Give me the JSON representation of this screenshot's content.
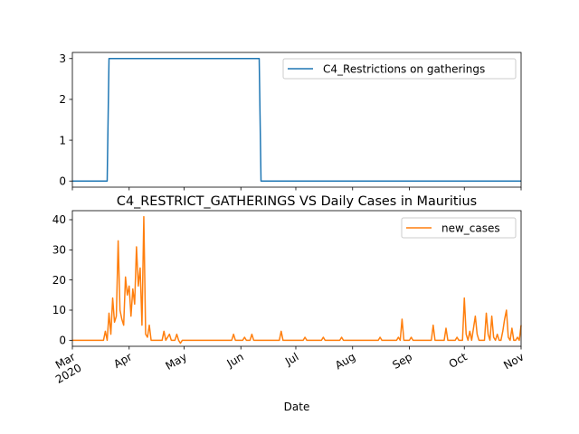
{
  "colors": {
    "series1": "#1f77b4",
    "series2": "#ff7f0e",
    "axis": "#000000",
    "legend_border": "#cccccc"
  },
  "chart_data": [
    {
      "type": "line",
      "title": "",
      "xlabel": "",
      "ylabel": "",
      "ylim": [
        -0.15,
        3.15
      ],
      "yticks": [
        0,
        1,
        2,
        3
      ],
      "legend": "top-right",
      "grid": false,
      "series": [
        {
          "name": "C4_Restrictions on gatherings",
          "color": "#1f77b4",
          "points": [
            [
              "2020-03-01",
              0
            ],
            [
              "2020-03-20",
              0
            ],
            [
              "2020-03-21",
              3
            ],
            [
              "2020-06-11",
              3
            ],
            [
              "2020-06-12",
              0
            ],
            [
              "2020-11-01",
              0
            ]
          ]
        }
      ]
    },
    {
      "type": "line",
      "title": "C4_RESTRICT_GATHERINGS VS Daily Cases in Mauritius",
      "xlabel": "Date",
      "ylabel": "",
      "ylim": [
        -2,
        43
      ],
      "yticks": [
        0,
        10,
        20,
        30,
        40
      ],
      "xlim": [
        "2020-03-01",
        "2020-11-01"
      ],
      "xticks": [
        {
          "date": "2020-03-01",
          "label": "Mar",
          "sub": "2020"
        },
        {
          "date": "2020-04-01",
          "label": "Apr",
          "sub": ""
        },
        {
          "date": "2020-05-01",
          "label": "May",
          "sub": ""
        },
        {
          "date": "2020-06-01",
          "label": "Jun",
          "sub": ""
        },
        {
          "date": "2020-07-01",
          "label": "Jul",
          "sub": ""
        },
        {
          "date": "2020-08-01",
          "label": "Aug",
          "sub": ""
        },
        {
          "date": "2020-09-01",
          "label": "Sep",
          "sub": ""
        },
        {
          "date": "2020-10-01",
          "label": "Oct",
          "sub": ""
        },
        {
          "date": "2020-11-01",
          "label": "Nov",
          "sub": ""
        }
      ],
      "legend": "top-right",
      "grid": false,
      "series": [
        {
          "name": "new_cases",
          "color": "#ff7f0e",
          "points": [
            [
              "2020-03-01",
              0
            ],
            [
              "2020-03-18",
              0
            ],
            [
              "2020-03-19",
              3
            ],
            [
              "2020-03-20",
              0
            ],
            [
              "2020-03-21",
              9
            ],
            [
              "2020-03-22",
              2
            ],
            [
              "2020-03-23",
              14
            ],
            [
              "2020-03-24",
              6
            ],
            [
              "2020-03-25",
              8
            ],
            [
              "2020-03-26",
              33
            ],
            [
              "2020-03-27",
              10
            ],
            [
              "2020-03-28",
              7
            ],
            [
              "2020-03-29",
              5
            ],
            [
              "2020-03-30",
              21
            ],
            [
              "2020-03-31",
              15
            ],
            [
              "2020-04-01",
              18
            ],
            [
              "2020-04-02",
              8
            ],
            [
              "2020-04-03",
              17
            ],
            [
              "2020-04-04",
              12
            ],
            [
              "2020-04-05",
              31
            ],
            [
              "2020-04-06",
              18
            ],
            [
              "2020-04-07",
              24
            ],
            [
              "2020-04-08",
              5
            ],
            [
              "2020-04-09",
              41
            ],
            [
              "2020-04-10",
              2
            ],
            [
              "2020-04-11",
              1
            ],
            [
              "2020-04-12",
              5
            ],
            [
              "2020-04-13",
              0
            ],
            [
              "2020-04-19",
              0
            ],
            [
              "2020-04-20",
              3
            ],
            [
              "2020-04-21",
              0
            ],
            [
              "2020-04-23",
              2
            ],
            [
              "2020-04-24",
              0
            ],
            [
              "2020-04-26",
              0
            ],
            [
              "2020-04-27",
              2
            ],
            [
              "2020-04-28",
              0
            ],
            [
              "2020-04-29",
              -1
            ],
            [
              "2020-04-30",
              0
            ],
            [
              "2020-05-27",
              0
            ],
            [
              "2020-05-28",
              2
            ],
            [
              "2020-05-29",
              0
            ],
            [
              "2020-06-02",
              0
            ],
            [
              "2020-06-03",
              1
            ],
            [
              "2020-06-04",
              0
            ],
            [
              "2020-06-06",
              0
            ],
            [
              "2020-06-07",
              2
            ],
            [
              "2020-06-08",
              0
            ],
            [
              "2020-06-22",
              0
            ],
            [
              "2020-06-23",
              3
            ],
            [
              "2020-06-24",
              0
            ],
            [
              "2020-07-05",
              0
            ],
            [
              "2020-07-06",
              1
            ],
            [
              "2020-07-07",
              0
            ],
            [
              "2020-07-15",
              0
            ],
            [
              "2020-07-16",
              1
            ],
            [
              "2020-07-17",
              0
            ],
            [
              "2020-07-25",
              0
            ],
            [
              "2020-07-26",
              1
            ],
            [
              "2020-07-27",
              0
            ],
            [
              "2020-08-15",
              0
            ],
            [
              "2020-08-16",
              1
            ],
            [
              "2020-08-17",
              0
            ],
            [
              "2020-08-25",
              0
            ],
            [
              "2020-08-26",
              1
            ],
            [
              "2020-08-27",
              0
            ],
            [
              "2020-08-28",
              7
            ],
            [
              "2020-08-29",
              0
            ],
            [
              "2020-09-01",
              0
            ],
            [
              "2020-09-02",
              1
            ],
            [
              "2020-09-03",
              0
            ],
            [
              "2020-09-13",
              0
            ],
            [
              "2020-09-14",
              5
            ],
            [
              "2020-09-15",
              0
            ],
            [
              "2020-09-20",
              0
            ],
            [
              "2020-09-21",
              4
            ],
            [
              "2020-09-22",
              0
            ],
            [
              "2020-09-26",
              0
            ],
            [
              "2020-09-27",
              1
            ],
            [
              "2020-09-28",
              0
            ],
            [
              "2020-09-30",
              0
            ],
            [
              "2020-10-01",
              14
            ],
            [
              "2020-10-02",
              2
            ],
            [
              "2020-10-03",
              0
            ],
            [
              "2020-10-04",
              3
            ],
            [
              "2020-10-05",
              0
            ],
            [
              "2020-10-07",
              8
            ],
            [
              "2020-10-08",
              2
            ],
            [
              "2020-10-09",
              0
            ],
            [
              "2020-10-12",
              0
            ],
            [
              "2020-10-13",
              9
            ],
            [
              "2020-10-14",
              2
            ],
            [
              "2020-10-15",
              0
            ],
            [
              "2020-10-16",
              8
            ],
            [
              "2020-10-17",
              1
            ],
            [
              "2020-10-18",
              0
            ],
            [
              "2020-10-19",
              2
            ],
            [
              "2020-10-20",
              0
            ],
            [
              "2020-10-21",
              0
            ],
            [
              "2020-10-22",
              3
            ],
            [
              "2020-10-23",
              7
            ],
            [
              "2020-10-24",
              10
            ],
            [
              "2020-10-25",
              1
            ],
            [
              "2020-10-26",
              0
            ],
            [
              "2020-10-27",
              4
            ],
            [
              "2020-10-28",
              0
            ],
            [
              "2020-10-29",
              0
            ],
            [
              "2020-10-30",
              1
            ],
            [
              "2020-10-31",
              0
            ],
            [
              "2020-11-01",
              5
            ]
          ]
        }
      ]
    }
  ]
}
